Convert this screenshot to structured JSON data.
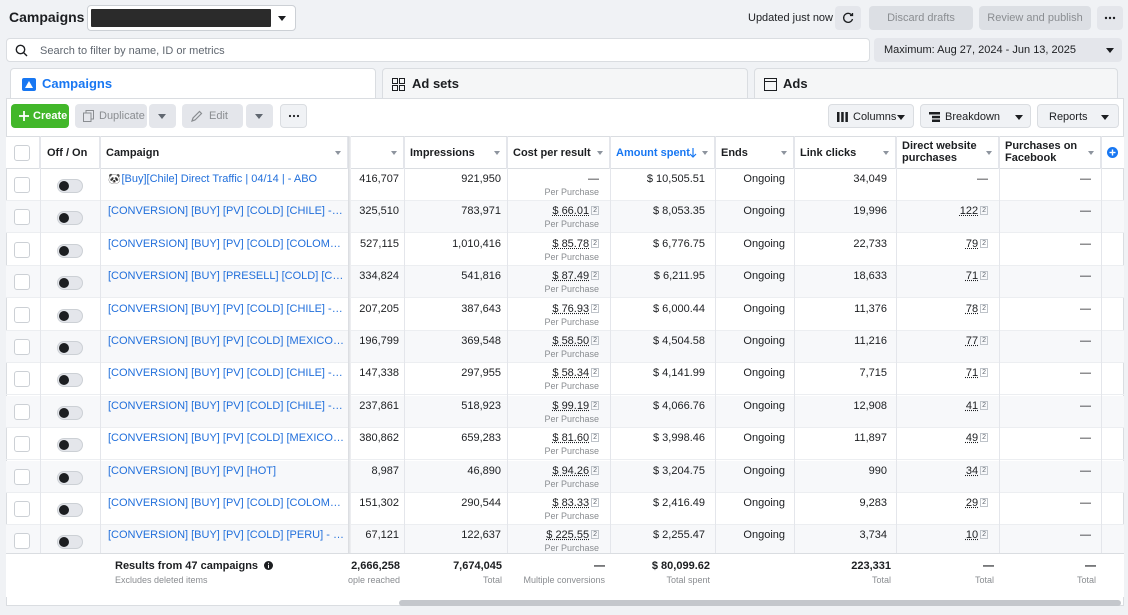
{
  "header": {
    "title": "Campaigns",
    "updated": "Updated just now",
    "discard_label": "Discard drafts",
    "review_label": "Review and publish"
  },
  "search": {
    "placeholder": "Search to filter by name, ID or metrics"
  },
  "date_range": "Maximum: Aug 27, 2024 - Jun 13, 2025",
  "tabs": [
    {
      "label": "Campaigns"
    },
    {
      "label": "Ad sets"
    },
    {
      "label": "Ads"
    }
  ],
  "toolbar": {
    "create": "Create",
    "duplicate": "Duplicate",
    "edit": "Edit",
    "columns": "Columns",
    "breakdown": "Breakdown",
    "reports": "Reports"
  },
  "columns": {
    "off_on": "Off / On",
    "campaign": "Campaign",
    "impressions": "Impressions",
    "cost_per_result": "Cost per result",
    "amount_spent": "Amount spent",
    "ends": "Ends",
    "link_clicks": "Link clicks",
    "direct_website": "Direct website purchases",
    "purchases_facebook": "Purchases on Facebook"
  },
  "rows": [
    {
      "name": "[Buy][Chile] Direct Traffic | 04/14 | - ABO",
      "reach": "416,707",
      "impressions": "921,950",
      "cpr": "—",
      "cpr_sub": "Per Purchase",
      "spent": "$ 10,505.51",
      "ends": "Ongoing",
      "clicks": "34,049",
      "direct": "—",
      "fb": "—"
    },
    {
      "name": "[CONVERSION] [BUY] [PV] [COLD] [CHILE] - VSL",
      "reach": "325,510",
      "impressions": "783,971",
      "cpr": "$ 66.01",
      "cpr_sub": "Per Purchase",
      "spent": "$ 8,053.35",
      "ends": "Ongoing",
      "clicks": "19,996",
      "direct": "122",
      "fb": "—"
    },
    {
      "name": "[CONVERSION] [BUY] [PV] [COLD] [COLOMBIA]...",
      "reach": "527,115",
      "impressions": "1,010,416",
      "cpr": "$ 85.78",
      "cpr_sub": "Per Purchase",
      "spent": "$ 6,776.75",
      "ends": "Ongoing",
      "clicks": "22,733",
      "direct": "79",
      "fb": "—"
    },
    {
      "name": "[CONVERSION] [BUY] [PRESELL] [COLD] [COLO...",
      "reach": "334,824",
      "impressions": "541,816",
      "cpr": "$ 87.49",
      "cpr_sub": "Per Purchase",
      "spent": "$ 6,211.95",
      "ends": "Ongoing",
      "clicks": "18,633",
      "direct": "71",
      "fb": "—"
    },
    {
      "name": "[CONVERSION] [BUY] [PV] [COLD] [CHILE] - BOOK",
      "reach": "207,205",
      "impressions": "387,643",
      "cpr": "$ 76.93",
      "cpr_sub": "Per Purchase",
      "spent": "$ 6,000.44",
      "ends": "Ongoing",
      "clicks": "11,376",
      "direct": "78",
      "fb": "—"
    },
    {
      "name": "[CONVERSION] [BUY] [PV] [COLD] [MEXICO] - B...",
      "reach": "196,799",
      "impressions": "369,548",
      "cpr": "$ 58.50",
      "cpr_sub": "Per Purchase",
      "spent": "$ 4,504.58",
      "ends": "Ongoing",
      "clicks": "11,216",
      "direct": "77",
      "fb": "—"
    },
    {
      "name": "[CONVERSION] [BUY] [PV] [COLD] [CHILE] - VSL...",
      "reach": "147,338",
      "impressions": "297,955",
      "cpr": "$ 58.34",
      "cpr_sub": "Per Purchase",
      "spent": "$ 4,141.99",
      "ends": "Ongoing",
      "clicks": "7,715",
      "direct": "71",
      "fb": "—"
    },
    {
      "name": "[CONVERSION] [BUY] [PV] [COLD] [CHILE] - VSL...",
      "reach": "237,861",
      "impressions": "518,923",
      "cpr": "$ 99.19",
      "cpr_sub": "Per Purchase",
      "spent": "$ 4,066.76",
      "ends": "Ongoing",
      "clicks": "12,908",
      "direct": "41",
      "fb": "—"
    },
    {
      "name": "[CONVERSION] [BUY] [PV] [COLD] [MEXICO] - VS...",
      "reach": "380,862",
      "impressions": "659,283",
      "cpr": "$ 81.60",
      "cpr_sub": "Per Purchase",
      "spent": "$ 3,998.46",
      "ends": "Ongoing",
      "clicks": "11,897",
      "direct": "49",
      "fb": "—"
    },
    {
      "name": "[CONVERSION] [BUY] [PV] [HOT]",
      "reach": "8,987",
      "impressions": "46,890",
      "cpr": "$ 94.26",
      "cpr_sub": "Per Purchase",
      "spent": "$ 3,204.75",
      "ends": "Ongoing",
      "clicks": "990",
      "direct": "34",
      "fb": "—"
    },
    {
      "name": "[CONVERSION] [BUY] [PV] [COLD] [COLOMBIA] -...",
      "reach": "151,302",
      "impressions": "290,544",
      "cpr": "$ 83.33",
      "cpr_sub": "Per Purchase",
      "spent": "$ 2,416.49",
      "ends": "Ongoing",
      "clicks": "9,283",
      "direct": "29",
      "fb": "—"
    },
    {
      "name": "[CONVERSION] [BUY] [PV] [COLD] [PERU] - VSL ...",
      "reach": "67,121",
      "impressions": "122,637",
      "cpr": "$ 225.55",
      "cpr_sub": "Per Purchase",
      "spent": "$ 2,255.47",
      "ends": "Ongoing",
      "clicks": "3,734",
      "direct": "10",
      "fb": "—"
    }
  ],
  "totals": {
    "results": "Results from 47 campaigns",
    "excludes": "Excludes deleted items",
    "reach": "2,666,258",
    "reach_sub": "ople reached",
    "impressions": "7,674,045",
    "impressions_sub": "Total",
    "cpr": "—",
    "cpr_sub": "Multiple conversions",
    "spent": "$ 80,099.62",
    "spent_sub": "Total spent",
    "clicks": "223,331",
    "clicks_sub": "Total",
    "direct": "—",
    "direct_sub": "Total",
    "fb": "—",
    "fb_sub": "Total"
  },
  "colors": {
    "link": "#216fdb",
    "create": "#42b72a",
    "active_tab": "#1877f2"
  }
}
